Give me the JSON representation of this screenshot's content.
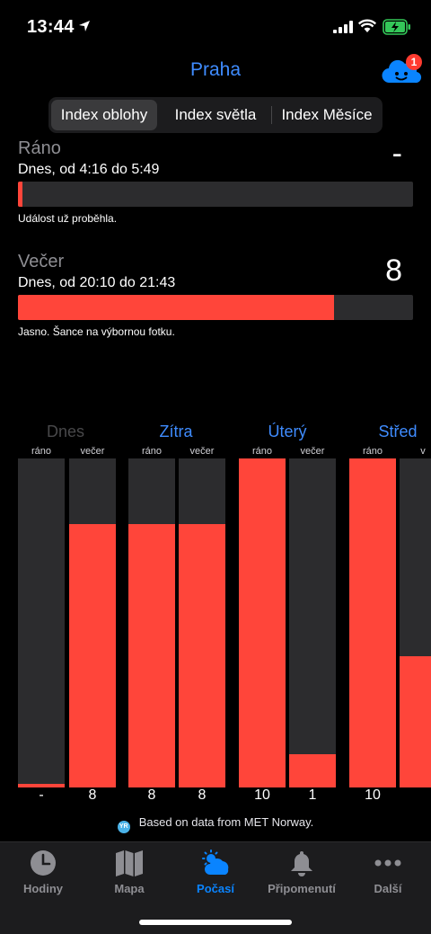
{
  "status_bar": {
    "time": "13:44"
  },
  "header": {
    "title": "Praha",
    "badge_count": "1"
  },
  "segments": [
    {
      "label": "Index oblohy",
      "active": true
    },
    {
      "label": "Index světla",
      "active": false
    },
    {
      "label": "Index Měsíce",
      "active": false
    }
  ],
  "events": {
    "morning": {
      "name": "Ráno",
      "time": "Dnes, od 4:16 do 5:49",
      "value": "-",
      "fill_fraction": 0.01,
      "note": "Událost už proběhla."
    },
    "evening": {
      "name": "Večer",
      "time": "Dnes, od 20:10 do 21:43",
      "value": "8",
      "fill_fraction": 0.8,
      "note": "Jasno. Šance na výbornou fotku."
    }
  },
  "forecast": {
    "days": [
      {
        "label": "Dnes",
        "past": true
      },
      {
        "label": "Zítra",
        "past": false
      },
      {
        "label": "Úterý",
        "past": false
      },
      {
        "label": "Střed",
        "past": false
      }
    ],
    "part_labels": [
      "ráno",
      "večer",
      "ráno",
      "večer",
      "ráno",
      "večer",
      "ráno",
      "v"
    ],
    "columns": [
      {
        "display": "-",
        "level": 0.01
      },
      {
        "display": "8",
        "level": 0.8
      },
      {
        "display": "8",
        "level": 0.8
      },
      {
        "display": "8",
        "level": 0.8
      },
      {
        "display": "10",
        "level": 1.0
      },
      {
        "display": "1",
        "level": 0.1
      },
      {
        "display": "10",
        "level": 1.0
      },
      {
        "display": "",
        "level": 0.4
      }
    ]
  },
  "attribution": {
    "icon_text": "YR",
    "text": "Based on data from MET Norway."
  },
  "tabs": [
    {
      "label": "Hodiny",
      "icon": "clock-icon",
      "active": false
    },
    {
      "label": "Mapa",
      "icon": "map-icon",
      "active": false
    },
    {
      "label": "Počasí",
      "icon": "weather-icon",
      "active": true
    },
    {
      "label": "Připomenutí",
      "icon": "bell-icon",
      "active": false
    },
    {
      "label": "Další",
      "icon": "more-icon",
      "active": false
    }
  ],
  "colors": {
    "accent": "#3f8cff",
    "bar_fill": "#ff453a",
    "bar_track": "#2c2c2e",
    "tab_active": "#0a84ff"
  }
}
